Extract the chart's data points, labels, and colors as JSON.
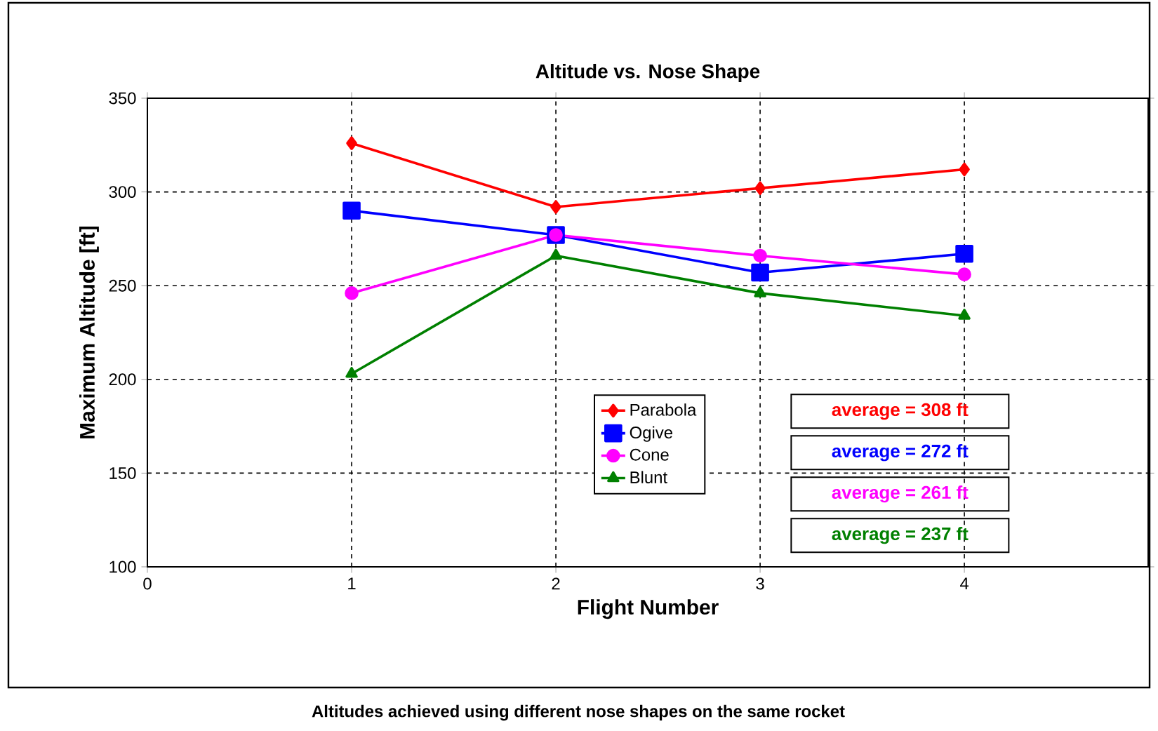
{
  "chart_data": {
    "type": "line",
    "title": "Altitude vs. Nose Shape",
    "xlabel": "Flight Number",
    "ylabel": "Maximum Altitude [ft]",
    "x": [
      1,
      2,
      3,
      4
    ],
    "series": [
      {
        "name": "Parabola",
        "color": "#ff0000",
        "marker": "diamond",
        "values": [
          326,
          292,
          302,
          312
        ]
      },
      {
        "name": "Ogive",
        "color": "#0000ff",
        "marker": "square",
        "values": [
          290,
          277,
          257,
          267
        ]
      },
      {
        "name": "Cone",
        "color": "#ff00ff",
        "marker": "circle",
        "values": [
          246,
          277,
          266,
          256
        ]
      },
      {
        "name": "Blunt",
        "color": "#008000",
        "marker": "triangle",
        "values": [
          203,
          266,
          246,
          234
        ]
      }
    ],
    "xlim": [
      0,
      4.9
    ],
    "xticks": [
      0,
      1,
      2,
      3,
      4
    ],
    "ylim": [
      100,
      350
    ],
    "yticks": [
      100,
      150,
      200,
      250,
      300,
      350
    ],
    "grid": true,
    "legend": "bottom right",
    "line_style": "solid",
    "annotations": [
      "average = 308 ft",
      "average = 272 ft",
      "average = 261 ft",
      "average = 237 ft",
      "Altitudes achieved using different nose shapes on the same rocket"
    ]
  }
}
